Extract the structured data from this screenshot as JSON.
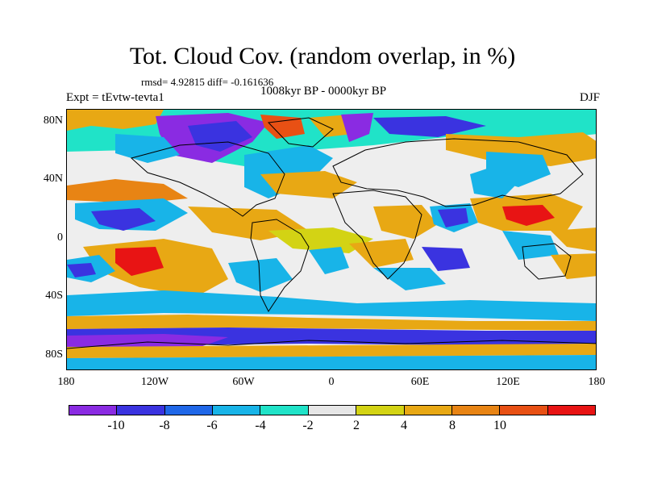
{
  "title": "Tot. Cloud Cov. (random overlap, in %)",
  "stats": "rmsd= 4.92815 diff= -0.161636",
  "period": "1008kyr BP - 0000kyr BP",
  "experiment": "Expt = tEvtw-tevta1",
  "season": "DJF",
  "lat_labels": [
    "80N",
    "40N",
    "0",
    "40S",
    "80S"
  ],
  "lon_labels": [
    "180",
    "120W",
    "60W",
    "0",
    "60E",
    "120E",
    "180"
  ],
  "colorbar": {
    "colors": [
      "#8a2be2",
      "#3a33e0",
      "#1f67e8",
      "#18b4e8",
      "#20e3c8",
      "#e6e6e6",
      "#d3d314",
      "#e8a814",
      "#e88414",
      "#e85014",
      "#e81414"
    ],
    "labels": [
      "-10",
      "-8",
      "-6",
      "-4",
      "-2",
      "2",
      "4",
      "8",
      "10"
    ]
  }
}
